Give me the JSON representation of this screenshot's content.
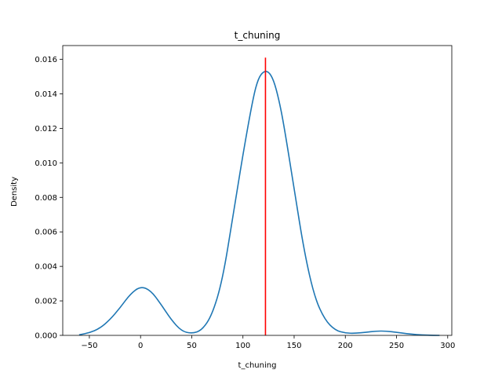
{
  "chart_data": {
    "type": "line",
    "title": "t_chuning",
    "xlabel": "t_chuning",
    "ylabel": "Density",
    "xlim": [
      -76,
      304
    ],
    "ylim": [
      0,
      0.0168
    ],
    "xticks": [
      -50,
      0,
      50,
      100,
      150,
      200,
      250,
      300
    ],
    "xtick_labels": [
      "−50",
      "0",
      "50",
      "100",
      "150",
      "200",
      "250",
      "300"
    ],
    "yticks": [
      0,
      0.002,
      0.004,
      0.006,
      0.008,
      0.01,
      0.012,
      0.014,
      0.016
    ],
    "ytick_labels": [
      "0.000",
      "0.002",
      "0.004",
      "0.006",
      "0.008",
      "0.010",
      "0.012",
      "0.014",
      "0.016"
    ],
    "grid": false,
    "series": [
      {
        "color": "#1f77b4",
        "x": [
          -60,
          -50,
          -40,
          -30,
          -20,
          -10,
          0,
          10,
          20,
          30,
          40,
          50,
          60,
          70,
          80,
          90,
          100,
          110,
          115,
          120,
          125,
          130,
          135,
          140,
          150,
          160,
          170,
          180,
          190,
          200,
          210,
          220,
          230,
          240,
          250,
          260,
          270,
          280,
          292
        ],
        "y": [
          3e-05,
          0.00015,
          0.0004,
          0.0009,
          0.0016,
          0.0024,
          0.00285,
          0.0026,
          0.0018,
          0.0009,
          0.00025,
          0.0001,
          0.0003,
          0.0012,
          0.0032,
          0.0068,
          0.0105,
          0.0138,
          0.0149,
          0.0153,
          0.0153,
          0.0148,
          0.0137,
          0.0122,
          0.0085,
          0.0048,
          0.0022,
          0.0009,
          0.0003,
          0.00013,
          0.00012,
          0.00018,
          0.00025,
          0.00025,
          0.00018,
          0.0001,
          4e-05,
          1e-05,
          0.0
        ]
      }
    ],
    "vline": {
      "x": 122,
      "ymin": 0,
      "ymax": 0.0161,
      "color": "#ff0000"
    }
  }
}
